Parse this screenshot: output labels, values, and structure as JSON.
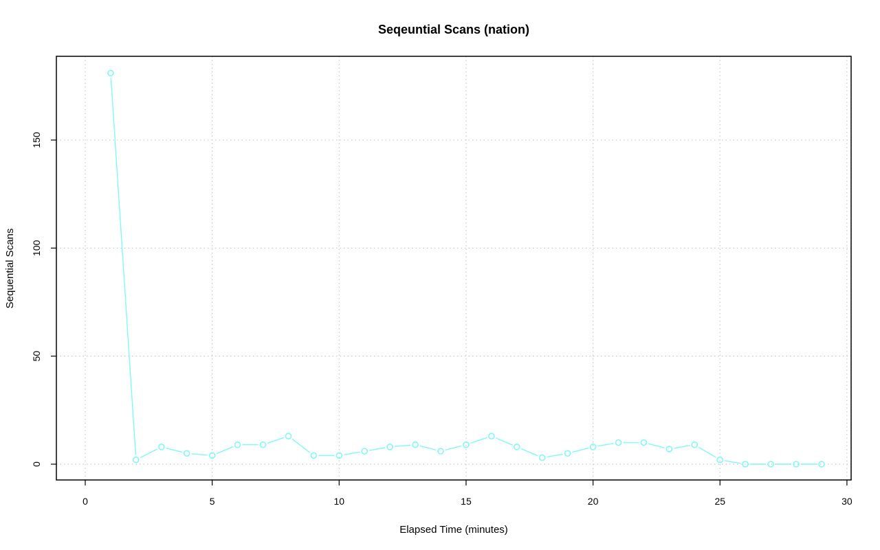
{
  "chart_data": {
    "type": "line",
    "title": "Seqeuntial Scans (nation)",
    "xlabel": "Elapsed Time (minutes)",
    "ylabel": "Sequential Scans",
    "xlim": [
      0,
      30
    ],
    "ylim": [
      0,
      180
    ],
    "x_ticks": [
      0,
      5,
      10,
      15,
      20,
      25,
      30
    ],
    "y_ticks": [
      0,
      50,
      100,
      150
    ],
    "grid": true,
    "series": [
      {
        "color": "#7ff9f9",
        "x": [
          1,
          2,
          3,
          4,
          5,
          6,
          7,
          8,
          9,
          10,
          11,
          12,
          13,
          14,
          15,
          16,
          17,
          18,
          19,
          20,
          21,
          22,
          23,
          24,
          25,
          26,
          27,
          28,
          29
        ],
        "values": [
          181,
          2,
          8,
          5,
          4,
          9,
          9,
          13,
          4,
          4,
          6,
          8,
          9,
          6,
          9,
          13,
          8,
          3,
          5,
          8,
          10,
          10,
          7,
          9,
          2,
          0,
          0,
          0,
          0
        ]
      }
    ]
  }
}
